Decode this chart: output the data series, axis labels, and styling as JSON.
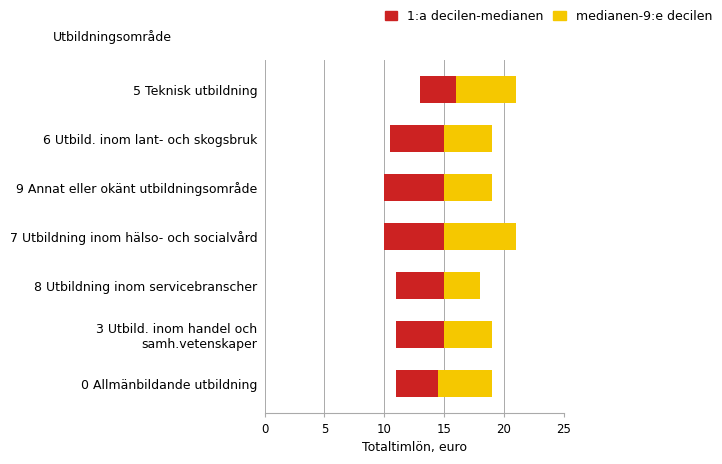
{
  "title": "Utbildningsområde",
  "xlabel": "Totaltimlön, euro",
  "legend_labels": [
    "1:a decilen-medianen",
    "medianen-9:e decilen"
  ],
  "bar_color_red": "#cc2222",
  "bar_color_yellow": "#f5c800",
  "categories": [
    "5 Teknisk utbildning",
    "6 Utbild. inom lant- och skogsbruk",
    "9 Annat eller okänt utbildningsområde",
    "7 Utbildning inom hälso- och socialvård",
    "8 Utbildning inom servicebranscher",
    "3 Utbild. inom handel och\nsamh.vetenskaper",
    "0 Allmänbildande utbildning"
  ],
  "decile1": [
    13.0,
    10.5,
    10.0,
    10.0,
    11.0,
    11.0,
    11.0
  ],
  "median": [
    16.0,
    15.0,
    15.0,
    15.0,
    15.0,
    15.0,
    14.5
  ],
  "decile9": [
    21.0,
    19.0,
    19.0,
    21.0,
    18.0,
    19.0,
    19.0
  ],
  "xlim": [
    0,
    25
  ],
  "xticks": [
    0,
    5,
    10,
    15,
    20,
    25
  ],
  "background_color": "#ffffff",
  "grid_color": "#aaaaaa",
  "title_fontsize": 9,
  "label_fontsize": 9,
  "tick_fontsize": 8.5,
  "legend_fontsize": 9,
  "bar_height": 0.55
}
